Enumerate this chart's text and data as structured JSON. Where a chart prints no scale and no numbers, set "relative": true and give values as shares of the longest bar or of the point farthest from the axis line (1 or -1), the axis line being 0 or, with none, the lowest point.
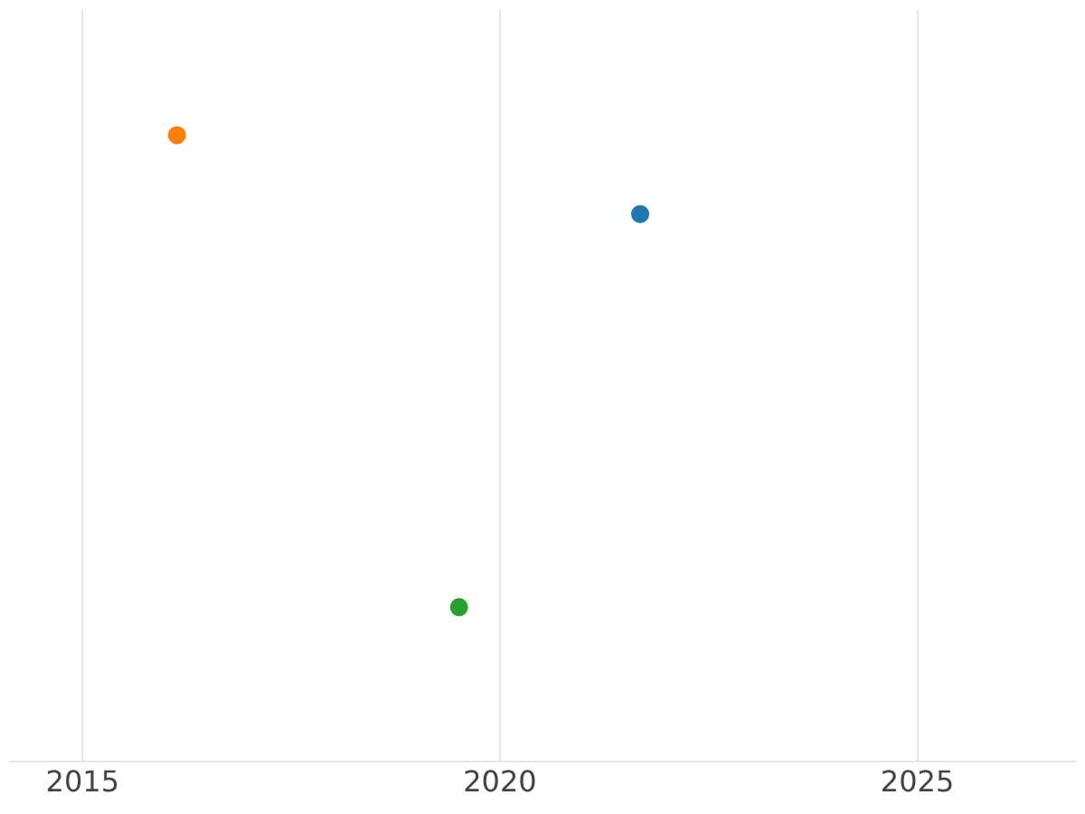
{
  "chart_data": {
    "type": "scatter",
    "relative": true,
    "x": [
      2021.68,
      2016.13,
      2019.51
    ],
    "values": [
      0.874,
      1,
      0.246
    ],
    "colors": [
      "#1f77b4",
      "#ff7f0e",
      "#2ca02c"
    ],
    "xlim": [
      2014.13,
      2026.89
    ],
    "xticks": [
      2015,
      2020,
      2025
    ],
    "grid": true,
    "marker": "circle",
    "legend": false
  }
}
